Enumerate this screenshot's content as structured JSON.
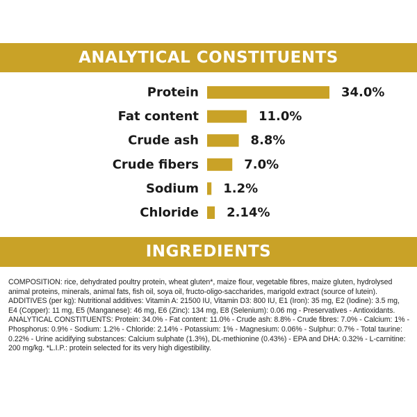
{
  "sections": {
    "analytical_title": "ANALYTICAL CONSTITUENTS",
    "ingredients_title": "INGREDIENTS"
  },
  "colors": {
    "accent": "#c9a227",
    "banner_text": "#ffffff",
    "label_text": "#1a1a1a"
  },
  "chart_data": {
    "type": "bar",
    "orientation": "horizontal",
    "title": "ANALYTICAL CONSTITUENTS",
    "categories": [
      "Protein",
      "Fat content",
      "Crude ash",
      "Crude fibers",
      "Sodium",
      "Chloride"
    ],
    "values": [
      34.0,
      11.0,
      8.8,
      7.0,
      1.2,
      2.14
    ],
    "value_labels": [
      "34.0%",
      "11.0%",
      "8.8%",
      "7.0%",
      "1.2%",
      "2.14%"
    ],
    "unit": "%",
    "grid": false,
    "legend": "none"
  },
  "ingredients": {
    "text": "COMPOSITION: rice, dehydrated poultry protein, wheat gluten*, maize flour, vegetable fibres, maize gluten, hydrolysed animal proteins, minerals, animal fats, fish oil, soya oil, fructo-oligo-saccharides, marigold extract (source of lutein). ADDITIVES (per kg): Nutritional additives: Vitamin A: 21500 IU, Vitamin D3: 800 IU, E1 (Iron): 35 mg, E2 (Iodine): 3.5 mg, E4 (Copper): 11 mg, E5 (Manganese): 46 mg, E6 (Zinc): 134 mg, E8 (Selenium): 0.06 mg - Preservatives - Antioxidants. ANALYTICAL CONSTITUENTS: Protein: 34.0% - Fat content: 11.0% - Crude ash: 8.8% - Crude fibres: 7.0% - Calcium: 1% - Phosphorus: 0.9% - Sodium: 1.2% - Chloride: 2.14% - Potassium: 1% - Magnesium: 0.06% - Sulphur: 0.7% - Total taurine: 0.22% - Urine acidifying substances: Calcium sulphate (1.3%), DL-methionine (0.43%) - EPA and DHA: 0.32% - L-carnitine: 200 mg/kg. *L.I.P.: protein selected for its very high digestibility."
  }
}
